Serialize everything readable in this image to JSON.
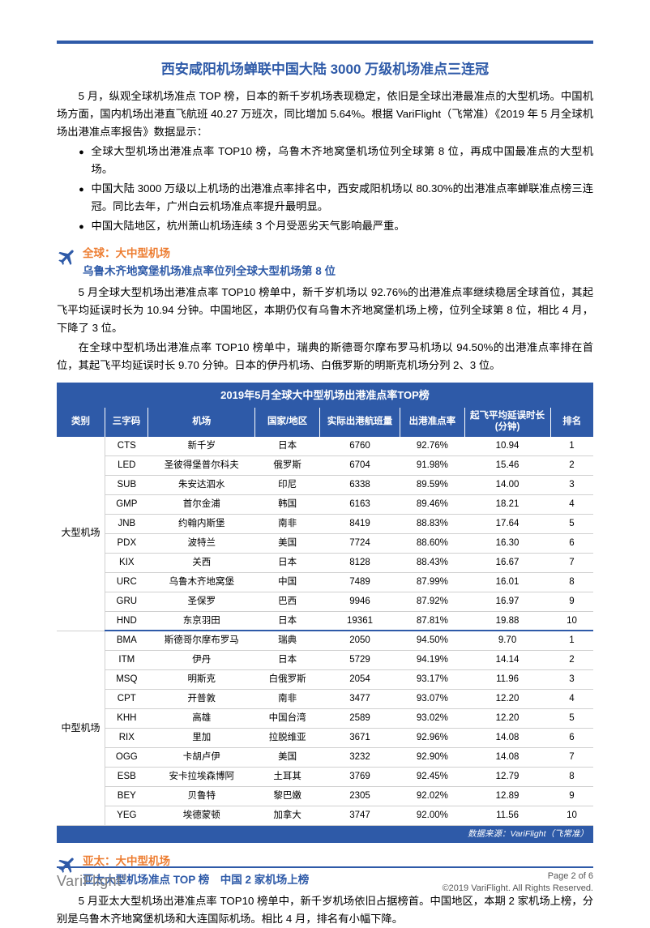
{
  "title": "西安咸阳机场蝉联中国大陆 3000 万级机场准点三连冠",
  "intro": "5 月，纵观全球机场准点 TOP 榜，日本的新千岁机场表现稳定，依旧是全球出港最准点的大型机场。中国机场方面，国内机场出港直飞航班 40.27 万班次，同比增加 5.64%。根据 VariFlight（飞常准）《2019 年 5 月全球机场出港准点率报告》数据显示：",
  "bullets": [
    "全球大型机场出港准点率 TOP10 榜，乌鲁木齐地窝堡机场位列全球第 8 位，再成中国最准点的大型机场。",
    "中国大陆 3000 万级以上机场的出港准点率排名中，西安咸阳机场以 80.30%的出港准点率蝉联准点榜三连冠。同比去年，广州白云机场准点率提升最明显。",
    "中国大陆地区，杭州萧山机场连续 3 个月受恶劣天气影响最严重。"
  ],
  "sec1": {
    "line1": "全球：大中型机场",
    "line2": "乌鲁木齐地窝堡机场准点率位列全球大型机场第 8 位",
    "p1": "5 月全球大型机场出港准点率 TOP10 榜单中，新千岁机场以 92.76%的出港准点率继续稳居全球首位，其起飞平均延误时长为 10.94 分钟。中国地区，本期仍仅有乌鲁木齐地窝堡机场上榜，位列全球第 8 位，相比 4 月，下降了 3 位。",
    "p2": "在全球中型机场出港准点率 TOP10 榜单中，瑞典的斯德哥尔摩布罗马机场以 94.50%的出港准点率排在首位，其起飞平均延误时长 9.70 分钟。日本的伊丹机场、白俄罗斯的明斯克机场分列 2、3 位。"
  },
  "table": {
    "title": "2019年5月全球大中型机场出港准点率TOP榜",
    "headers": [
      "类别",
      "三字码",
      "机场",
      "国家/地区",
      "实际出港航班量",
      "出港准点率",
      "起飞平均延误时长\n(分钟)",
      "排名"
    ],
    "groups": [
      {
        "cat": "大型机场",
        "rows": [
          [
            "CTS",
            "新千岁",
            "日本",
            "6760",
            "92.76%",
            "10.94",
            "1"
          ],
          [
            "LED",
            "圣彼得堡普尔科夫",
            "俄罗斯",
            "6704",
            "91.98%",
            "15.46",
            "2"
          ],
          [
            "SUB",
            "朱安达泗水",
            "印尼",
            "6338",
            "89.59%",
            "14.00",
            "3"
          ],
          [
            "GMP",
            "首尔金浦",
            "韩国",
            "6163",
            "89.46%",
            "18.21",
            "4"
          ],
          [
            "JNB",
            "约翰内斯堡",
            "南非",
            "8419",
            "88.83%",
            "17.64",
            "5"
          ],
          [
            "PDX",
            "波特兰",
            "美国",
            "7724",
            "88.60%",
            "16.30",
            "6"
          ],
          [
            "KIX",
            "关西",
            "日本",
            "8128",
            "88.43%",
            "16.67",
            "7"
          ],
          [
            "URC",
            "乌鲁木齐地窝堡",
            "中国",
            "7489",
            "87.99%",
            "16.01",
            "8"
          ],
          [
            "GRU",
            "圣保罗",
            "巴西",
            "9946",
            "87.92%",
            "16.97",
            "9"
          ],
          [
            "HND",
            "东京羽田",
            "日本",
            "19361",
            "87.81%",
            "19.88",
            "10"
          ]
        ]
      },
      {
        "cat": "中型机场",
        "rows": [
          [
            "BMA",
            "斯德哥尔摩布罗马",
            "瑞典",
            "2050",
            "94.50%",
            "9.70",
            "1"
          ],
          [
            "ITM",
            "伊丹",
            "日本",
            "5729",
            "94.19%",
            "14.14",
            "2"
          ],
          [
            "MSQ",
            "明斯克",
            "白俄罗斯",
            "2054",
            "93.17%",
            "11.96",
            "3"
          ],
          [
            "CPT",
            "开普敦",
            "南非",
            "3477",
            "93.07%",
            "12.20",
            "4"
          ],
          [
            "KHH",
            "高雄",
            "中国台湾",
            "2589",
            "93.02%",
            "12.20",
            "5"
          ],
          [
            "RIX",
            "里加",
            "拉脱维亚",
            "3671",
            "92.96%",
            "14.08",
            "6"
          ],
          [
            "OGG",
            "卡胡卢伊",
            "美国",
            "3232",
            "92.90%",
            "14.08",
            "7"
          ],
          [
            "ESB",
            "安卡拉埃森博阿",
            "土耳其",
            "3769",
            "92.45%",
            "12.79",
            "8"
          ],
          [
            "BEY",
            "贝鲁特",
            "黎巴嫩",
            "2305",
            "92.02%",
            "12.89",
            "9"
          ],
          [
            "YEG",
            "埃德蒙顿",
            "加拿大",
            "3747",
            "92.00%",
            "11.56",
            "10"
          ]
        ]
      }
    ],
    "source": "数据来源：VariFlight（飞常准）"
  },
  "sec2": {
    "line1": "亚太：大中型机场",
    "line2": "亚太大型机场准点 TOP 榜　中国 2 家机场上榜",
    "p1": "5 月亚太大型机场出港准点率 TOP10 榜单中，新千岁机场依旧占据榜首。中国地区，本期 2 家机场上榜，分别是乌鲁木齐地窝堡机场和大连国际机场。相比 4 月，排名有小幅下降。"
  },
  "footer": {
    "logo": "VariFlight",
    "page": "Page 2 of 6",
    "copy": "©2019 VariFlight. All Rights Reserved."
  },
  "colors": {
    "brand": "#2e5aa8",
    "accent": "#ed7d31",
    "grid": "#d0d0d0"
  }
}
